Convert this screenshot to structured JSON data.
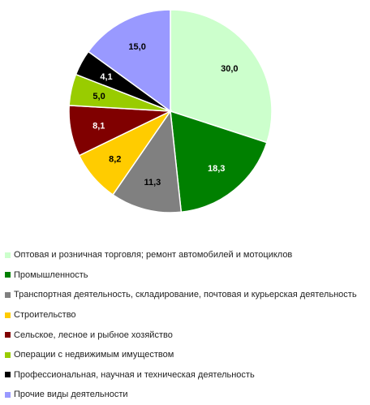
{
  "chart_data": {
    "type": "pie",
    "slices": [
      {
        "label": "Оптовая и розничная торговля; ремонт автомобилей и мотоциклов",
        "value": 30.0,
        "display": "30,0",
        "color": "#CCFFCC",
        "label_color": "#000000"
      },
      {
        "label": "Промышленность",
        "value": 18.3,
        "display": "18,3",
        "color": "#008000",
        "label_color": "#ffffff"
      },
      {
        "label": "Транспортная деятельность, складирование, почтовая и курьерская деятельность",
        "value": 11.3,
        "display": "11,3",
        "color": "#808080",
        "label_color": "#000000"
      },
      {
        "label": "Строительство",
        "value": 8.2,
        "display": "8,2",
        "color": "#FFCC00",
        "label_color": "#000000"
      },
      {
        "label": "Сельское, лесное и рыбное хозяйство",
        "value": 8.1,
        "display": "8,1",
        "color": "#800000",
        "label_color": "#ffffff"
      },
      {
        "label": "Операции с недвижимым имуществом",
        "value": 5.0,
        "display": "5,0",
        "color": "#99CC00",
        "label_color": "#000000"
      },
      {
        "label": "Профессиональная, научная и техническая деятельность",
        "value": 4.1,
        "display": "4,1",
        "color": "#000000",
        "label_color": "#ffffff"
      },
      {
        "label": "Прочие виды деятельности",
        "value": 15.0,
        "display": "15,0",
        "color": "#9999FF",
        "label_color": "#000000"
      }
    ],
    "start_angle": "12 o'clock, clockwise",
    "legend_position": "bottom"
  }
}
